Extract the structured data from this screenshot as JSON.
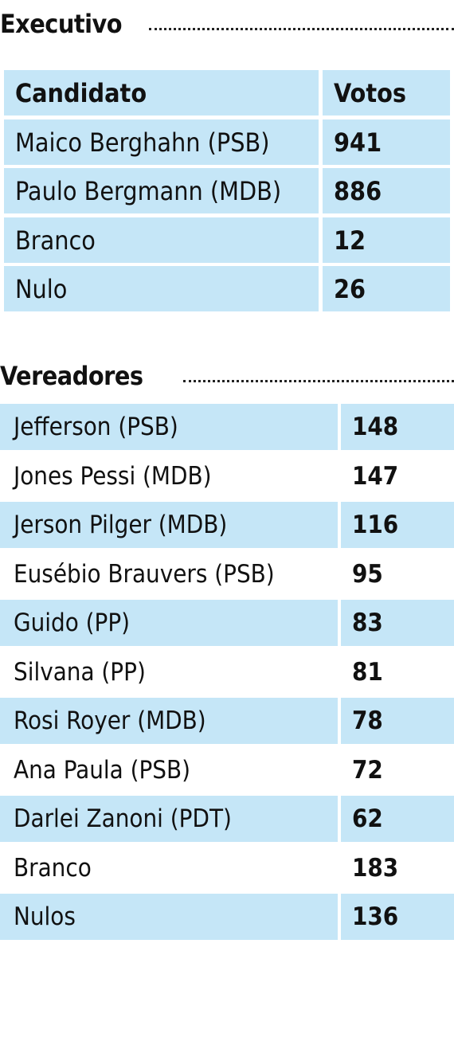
{
  "executivo": {
    "title": "Executivo",
    "header": {
      "candidate": "Candidato",
      "votes": "Votos"
    },
    "rows": [
      {
        "name": "Maico Berghahn (PSB)",
        "votes": "941"
      },
      {
        "name": "Paulo Bergmann (MDB)",
        "votes": "886"
      },
      {
        "name": "Branco",
        "votes": "12"
      },
      {
        "name": "Nulo",
        "votes": "26"
      }
    ]
  },
  "vereadores": {
    "title": "Vereadores",
    "rows": [
      {
        "name": "Jefferson (PSB)",
        "votes": "148"
      },
      {
        "name": "Jones Pessi (MDB)",
        "votes": "147"
      },
      {
        "name": "Jerson Pilger (MDB)",
        "votes": "116"
      },
      {
        "name": "Eusébio Brauvers (PSB)",
        "votes": "95"
      },
      {
        "name": "Guido (PP)",
        "votes": "83"
      },
      {
        "name": "Silvana (PP)",
        "votes": "81"
      },
      {
        "name": "Rosi Royer (MDB)",
        "votes": "78"
      },
      {
        "name": "Ana Paula (PSB)",
        "votes": "72"
      },
      {
        "name": "Darlei Zanoni (PDT)",
        "votes": "62"
      },
      {
        "name": "Branco",
        "votes": "183"
      },
      {
        "name": "Nulos",
        "votes": "136"
      }
    ]
  },
  "colors": {
    "row_fill": "#c5e6f7",
    "text": "#111111"
  }
}
